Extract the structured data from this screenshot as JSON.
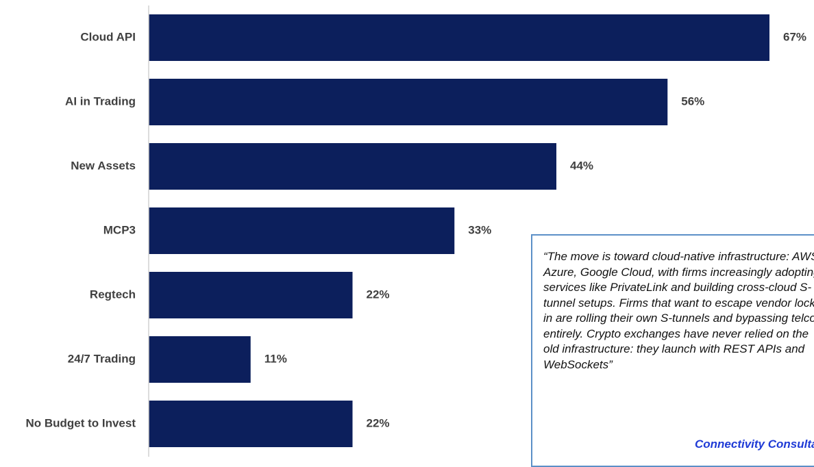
{
  "chart_data": {
    "type": "bar",
    "orientation": "horizontal",
    "categories": [
      "Cloud API",
      "AI in Trading",
      "New Assets",
      "MCP3",
      "Regtech",
      "24/7 Trading",
      "No Budget to Invest"
    ],
    "values": [
      67,
      56,
      44,
      33,
      22,
      11,
      22
    ],
    "value_labels": [
      "67%",
      "56%",
      "44%",
      "33%",
      "22%",
      "11%",
      "22%"
    ],
    "xlim": [
      0,
      67
    ],
    "bar_color": "#0c1f5c",
    "axis_color": "#d0d0d0",
    "grid": false,
    "legend": "none"
  },
  "callout": {
    "quote": "“The move is toward cloud-native infrastructure: AWS, Azure, Google Cloud, with firms increasingly adopting services like PrivateLink and building cross-cloud S-tunnel setups. Firms that want to escape vendor lock-in are rolling their own S-tunnels and bypassing telcos entirely. Crypto exchanges have never relied on the old infrastructure: they launch with REST APIs and WebSockets”",
    "source": "Connectivity Consultant",
    "border_color": "#5b8fc7",
    "source_color": "#1f3bd6"
  }
}
